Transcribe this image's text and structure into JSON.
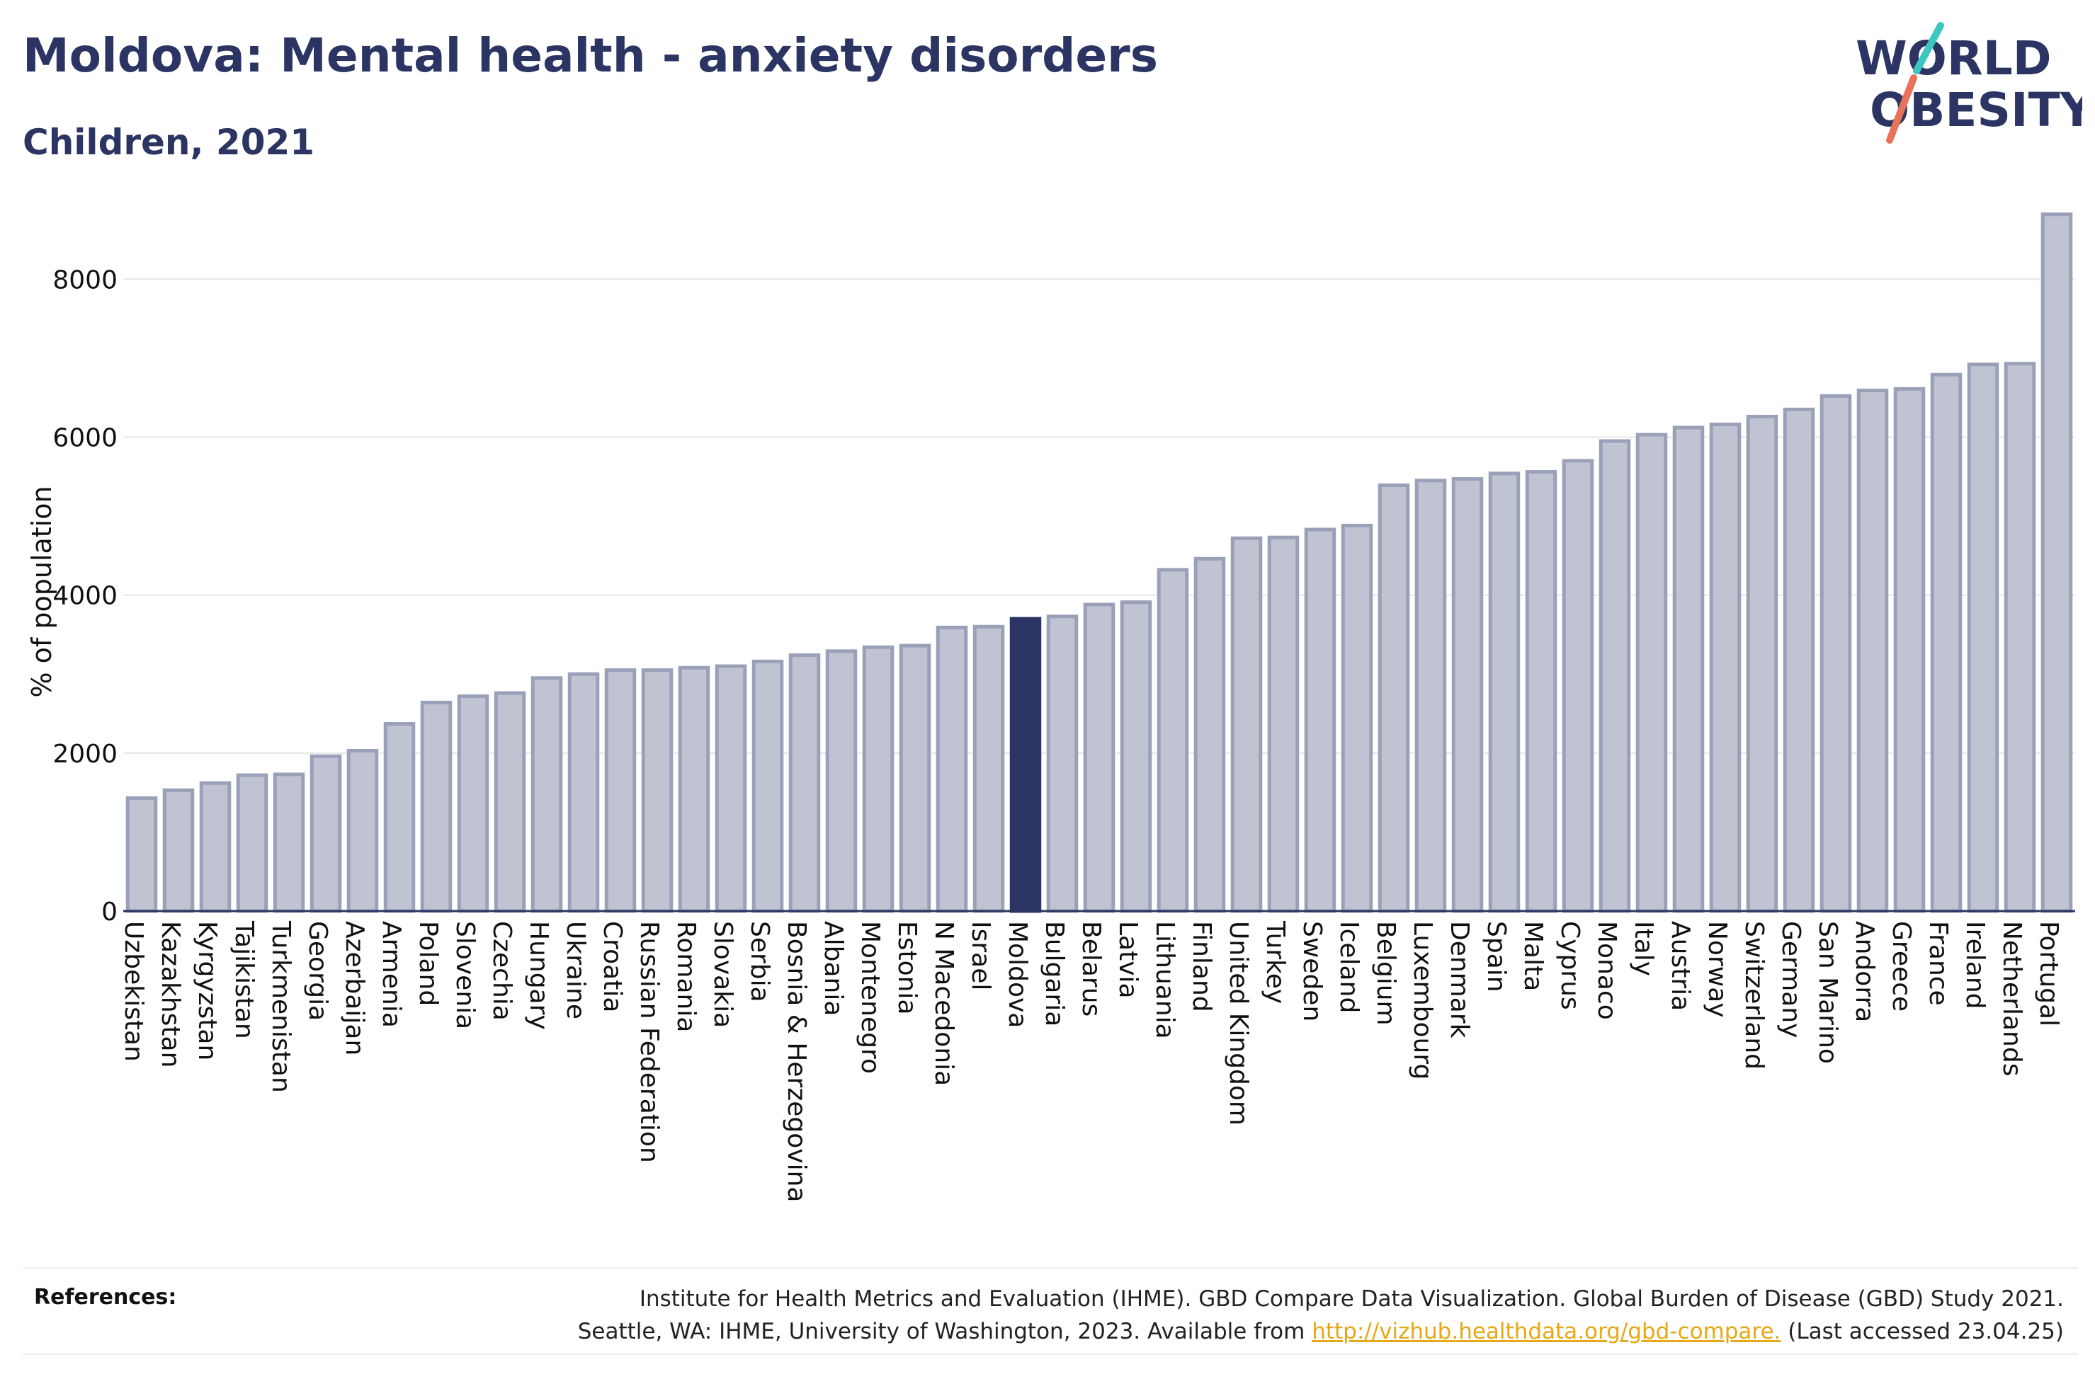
{
  "title": "Moldova: Mental health - anxiety disorders",
  "subtitle": "Children, 2021",
  "logo": {
    "line1": "WORLD",
    "line2": "OBESITY",
    "slash_colors": [
      "#3cc8c0",
      "#e8735a"
    ]
  },
  "references": {
    "label": "References:",
    "line1": "Institute for Health Metrics and Evaluation (IHME). GBD Compare Data Visualization. Global Burden of Disease (GBD) Study 2021.",
    "line2_pre": "Seattle, WA: IHME, University of Washington, 2023. Available from ",
    "link": "http://vizhub.healthdata.org/gbd-compare.",
    "line2_post": " (Last accessed 23.04.25)"
  },
  "chart_data": {
    "type": "bar",
    "ylabel": "% of population",
    "ylim": [
      0,
      8800
    ],
    "yticks": [
      0,
      2000,
      4000,
      6000,
      8000
    ],
    "grid": true,
    "highlight": "Moldova",
    "colors": {
      "bar": "#c0c4d2",
      "bar_border": "#9aa0b8",
      "highlight": "#2b3462"
    },
    "categories": [
      "Uzbekistan",
      "Kazakhstan",
      "Kyrgyzstan",
      "Tajikistan",
      "Turkmenistan",
      "Georgia",
      "Azerbaijan",
      "Armenia",
      "Poland",
      "Slovenia",
      "Czechia",
      "Hungary",
      "Ukraine",
      "Croatia",
      "Russian Federation",
      "Romania",
      "Slovakia",
      "Serbia",
      "Bosnia & Herzegovina",
      "Albania",
      "Montenegro",
      "Estonia",
      "N Macedonia",
      "Israel",
      "Moldova",
      "Bulgaria",
      "Belarus",
      "Latvia",
      "Lithuania",
      "Finland",
      "United Kingdom",
      "Turkey",
      "Sweden",
      "Iceland",
      "Belgium",
      "Luxembourg",
      "Denmark",
      "Spain",
      "Malta",
      "Cyprus",
      "Monaco",
      "Italy",
      "Austria",
      "Norway",
      "Switzerland",
      "Germany",
      "San Marino",
      "Andorra",
      "Greece",
      "France",
      "Ireland",
      "Netherlands",
      "Portugal"
    ],
    "values": [
      1430,
      1530,
      1620,
      1720,
      1730,
      1960,
      2030,
      2370,
      2640,
      2720,
      2760,
      2950,
      3000,
      3050,
      3050,
      3080,
      3100,
      3160,
      3240,
      3290,
      3340,
      3360,
      3590,
      3600,
      3700,
      3730,
      3880,
      3910,
      4320,
      4460,
      4720,
      4730,
      4830,
      4880,
      5390,
      5450,
      5470,
      5540,
      5560,
      5700,
      5950,
      6030,
      6120,
      6160,
      6260,
      6350,
      6520,
      6590,
      6610,
      6790,
      6920,
      6930,
      8820
    ]
  }
}
